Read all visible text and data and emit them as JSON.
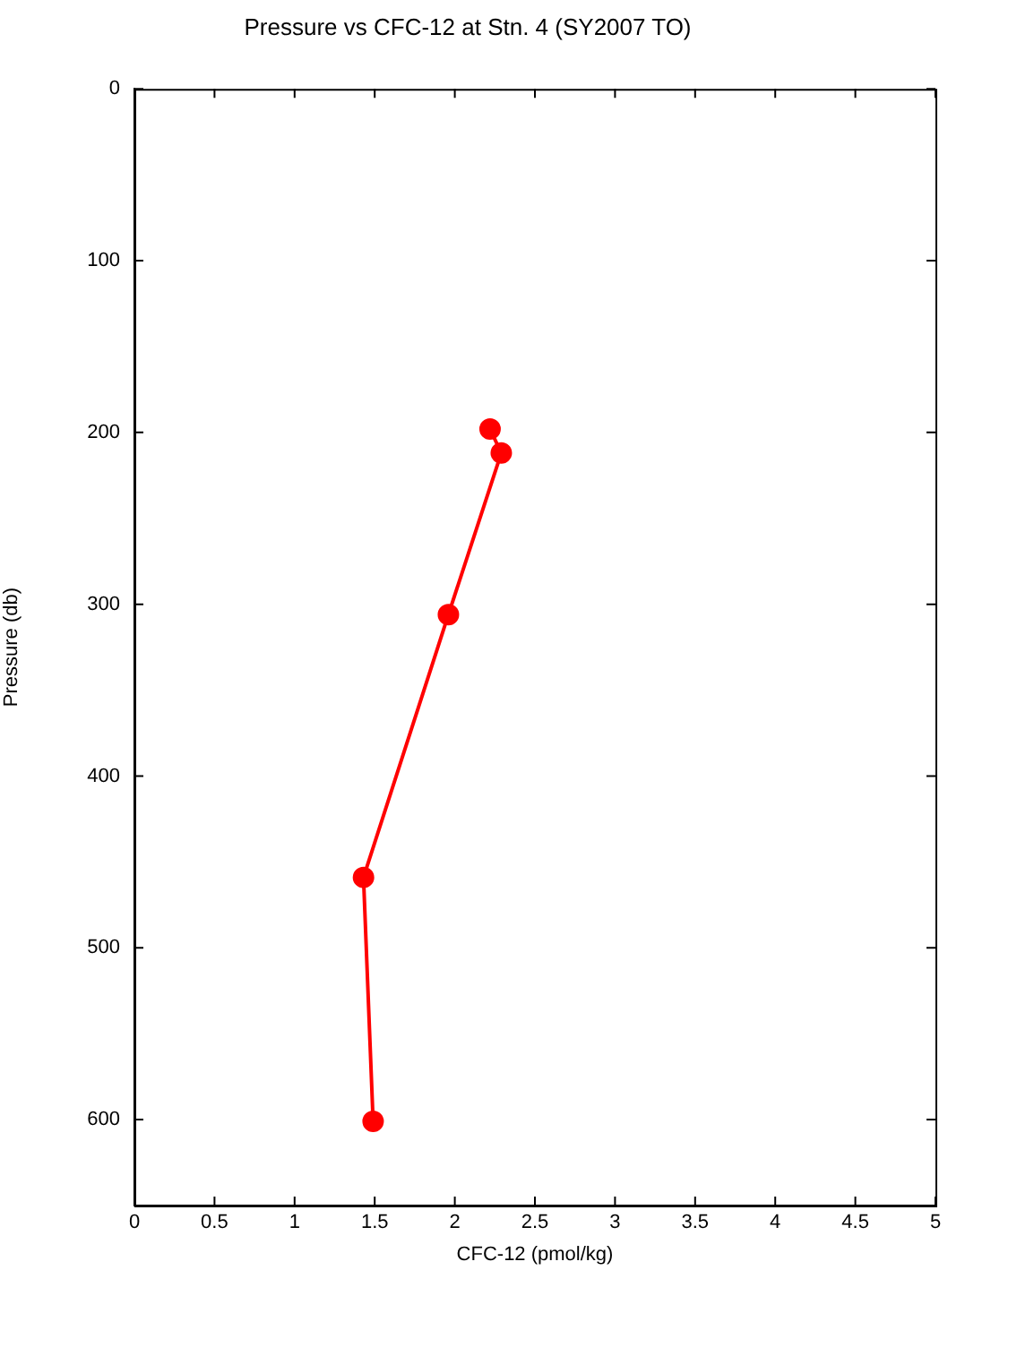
{
  "chart_data": {
    "type": "line",
    "title": "Pressure vs CFC-12 at Stn. 4 (SY2007 TO)",
    "xlabel": "CFC-12 (pmol/kg)",
    "ylabel": "Pressure (db)",
    "xlim": [
      0,
      5
    ],
    "xticks": [
      0,
      0.5,
      1,
      1.5,
      2,
      2.5,
      3,
      3.5,
      4,
      4.5,
      5
    ],
    "ylim": [
      650,
      0
    ],
    "yticks": [
      0,
      100,
      200,
      300,
      400,
      500,
      600
    ],
    "series": [
      {
        "color": "#ff0000",
        "x": [
          2.22,
          2.29,
          1.96,
          1.43,
          1.49
        ],
        "values": [
          198,
          212,
          306,
          459,
          601
        ]
      }
    ],
    "marker": "circle",
    "line_style": "solid",
    "grid": false,
    "legend": false
  }
}
